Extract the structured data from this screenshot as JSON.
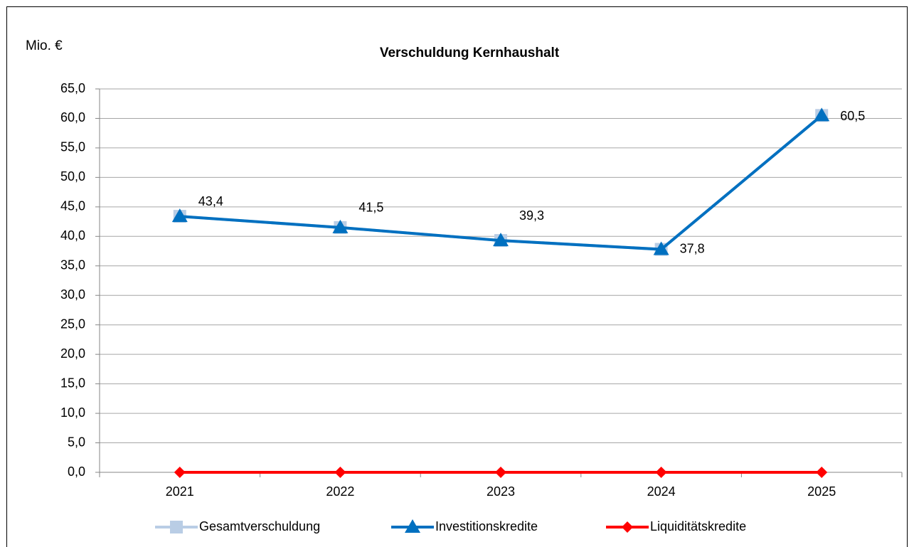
{
  "chart_data": {
    "type": "line",
    "title": "Verschuldung Kernhaushalt",
    "y_label": "Mio. €",
    "categories": [
      "2021",
      "2022",
      "2023",
      "2024",
      "2025"
    ],
    "series": [
      {
        "name": "Gesamtverschuldung",
        "color": "#b9cde5",
        "marker": "square",
        "values": [
          43.4,
          41.5,
          39.3,
          37.8,
          60.5
        ],
        "value_labels": [
          "43,4",
          "41,5",
          "39,3",
          "37,8",
          "60,5"
        ]
      },
      {
        "name": "Investitionskredite",
        "color": "#0070c0",
        "marker": "triangle",
        "values": [
          43.4,
          41.5,
          39.3,
          37.8,
          60.5
        ]
      },
      {
        "name": "Liquiditätskredite",
        "color": "#ff0000",
        "marker": "diamond",
        "values": [
          0,
          0,
          0,
          0,
          0
        ]
      }
    ],
    "ylim": [
      0,
      65
    ],
    "yticks": [
      {
        "value": 0,
        "label": "0,0"
      },
      {
        "value": 5,
        "label": "5,0"
      },
      {
        "value": 10,
        "label": "10,0"
      },
      {
        "value": 15,
        "label": "15,0"
      },
      {
        "value": 20,
        "label": "20,0"
      },
      {
        "value": 25,
        "label": "25,0"
      },
      {
        "value": 30,
        "label": "30,0"
      },
      {
        "value": 35,
        "label": "35,0"
      },
      {
        "value": 40,
        "label": "40,0"
      },
      {
        "value": 45,
        "label": "45,0"
      },
      {
        "value": 50,
        "label": "50,0"
      },
      {
        "value": 55,
        "label": "55,0"
      },
      {
        "value": 60,
        "label": "60,0"
      },
      {
        "value": 65,
        "label": "65,0"
      }
    ],
    "grid": true,
    "legend": "bottom"
  }
}
